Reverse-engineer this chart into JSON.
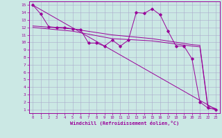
{
  "xlabel": "Windchill (Refroidissement éolien,°C)",
  "background_color": "#cbe8e4",
  "grid_color": "#aaaacc",
  "line_color": "#990099",
  "xlim": [
    -0.5,
    23.5
  ],
  "ylim": [
    0.5,
    15.5
  ],
  "xticks": [
    0,
    1,
    2,
    3,
    4,
    5,
    6,
    7,
    8,
    9,
    10,
    11,
    12,
    13,
    14,
    15,
    16,
    17,
    18,
    19,
    20,
    21,
    22,
    23
  ],
  "yticks": [
    1,
    2,
    3,
    4,
    5,
    6,
    7,
    8,
    9,
    10,
    11,
    12,
    13,
    14,
    15
  ],
  "series1_x": [
    0,
    1,
    2,
    3,
    4,
    5,
    6,
    7,
    8,
    9,
    10,
    11,
    12,
    13,
    14,
    15,
    16,
    17,
    18,
    19,
    20,
    21,
    22,
    23
  ],
  "series1_y": [
    15.0,
    13.8,
    12.1,
    12.0,
    12.0,
    11.8,
    11.7,
    9.9,
    9.9,
    9.5,
    10.3,
    9.5,
    10.3,
    14.0,
    13.9,
    14.5,
    13.7,
    11.5,
    9.5,
    9.5,
    7.8,
    2.0,
    1.2,
    1.0
  ],
  "series2_x": [
    0,
    23
  ],
  "series2_y": [
    15.0,
    1.0
  ],
  "series3_x": [
    0,
    5,
    10,
    15,
    20,
    21,
    22,
    23
  ],
  "series3_y": [
    12.2,
    11.8,
    11.0,
    10.5,
    9.7,
    9.6,
    1.5,
    1.1
  ],
  "series4_x": [
    0,
    5,
    10,
    15,
    20,
    21,
    22,
    23
  ],
  "series4_y": [
    12.0,
    11.5,
    10.5,
    10.2,
    9.5,
    9.4,
    1.2,
    1.0
  ]
}
